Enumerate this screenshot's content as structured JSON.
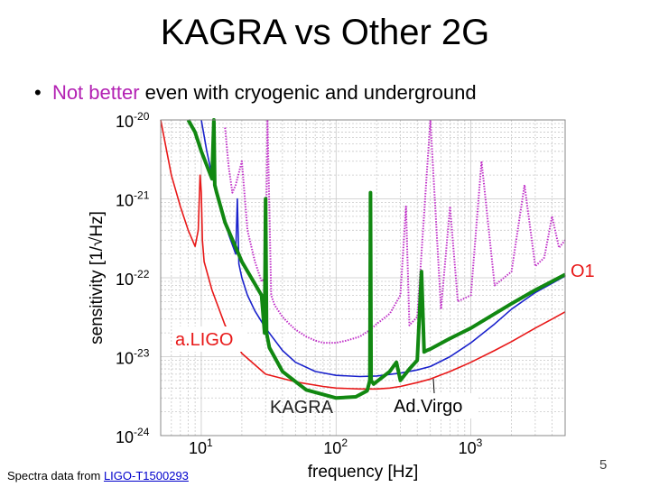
{
  "slide": {
    "title": "KAGRA vs Other 2G",
    "bullet": "•",
    "bullet_highlight": "Not better",
    "bullet_rest": " even with cryogenic and underground",
    "footnote_prefix": "Spectra data from ",
    "footnote_link": "LIGO-T1500293",
    "page_number": "5"
  },
  "colors": {
    "aLIGO": "#e81818",
    "KAGRA": "#118811",
    "AdVirgo": "#1a22cc",
    "O1": "#c030c8",
    "highlight": "#b321b3",
    "grid": "#c8c8c8"
  },
  "chart_data": {
    "type": "line",
    "title": "",
    "xlabel": "frequency [Hz]",
    "ylabel": "sensitivity [1/√Hz]",
    "xscale": "log",
    "yscale": "log",
    "xlim": [
      5,
      5000
    ],
    "ylim": [
      1e-24,
      1e-20
    ],
    "x_ticks": [
      {
        "value": 10,
        "base": "10",
        "exp": "1"
      },
      {
        "value": 100,
        "base": "10",
        "exp": "2"
      },
      {
        "value": 1000,
        "base": "10",
        "exp": "3"
      }
    ],
    "y_ticks": [
      {
        "value": 1e-20,
        "base": "10",
        "exp": "-20"
      },
      {
        "value": 1e-21,
        "base": "10",
        "exp": "-21"
      },
      {
        "value": 1e-22,
        "base": "10",
        "exp": "-22"
      },
      {
        "value": 1e-23,
        "base": "10",
        "exp": "-23"
      },
      {
        "value": 1e-24,
        "base": "10",
        "exp": "-24"
      }
    ],
    "series": [
      {
        "name": "a.LIGO",
        "label": "a.LIGO",
        "color": "#e81818",
        "style": "solid",
        "x": [
          5,
          6,
          7,
          8,
          9,
          9.5,
          9.8,
          10,
          10.2,
          10.5,
          12,
          15,
          20,
          30,
          50,
          80,
          100,
          150,
          200,
          250,
          300,
          400,
          500,
          700,
          1000,
          1500,
          2000,
          3000,
          4000,
          5000
        ],
        "y": [
          1.1e-20,
          2e-21,
          8e-22,
          4e-22,
          2.5e-22,
          4e-22,
          2e-21,
          1.2e-21,
          3e-22,
          1.6e-22,
          7e-23,
          2.5e-23,
          1.1e-23,
          6e-24,
          4.8e-24,
          4.2e-24,
          4e-24,
          3.9e-24,
          3.9e-24,
          4e-24,
          4.2e-24,
          4.7e-24,
          5.2e-24,
          6.5e-24,
          8.5e-24,
          1.2e-23,
          1.55e-23,
          2.3e-23,
          3e-23,
          3.7e-23
        ]
      },
      {
        "name": "Ad.Virgo",
        "label": "Ad.Virgo",
        "color": "#1a22cc",
        "style": "solid",
        "x": [
          10,
          11,
          12,
          14,
          16,
          18,
          18.5,
          19,
          20,
          22,
          25,
          30,
          40,
          50,
          70,
          100,
          150,
          200,
          300,
          400,
          500,
          700,
          1000,
          1500,
          2000,
          3000,
          4000,
          5000
        ],
        "y": [
          1e-20,
          4e-21,
          2e-21,
          8e-22,
          3.5e-22,
          2e-22,
          1e-21,
          1.5e-22,
          1e-22,
          6e-23,
          3.8e-23,
          2.3e-23,
          1.2e-23,
          8.5e-24,
          6.5e-24,
          5.8e-24,
          5.6e-24,
          5.7e-24,
          6.2e-24,
          6.8e-24,
          7.5e-24,
          1e-23,
          1.5e-23,
          2.6e-23,
          4e-23,
          6.5e-23,
          8.5e-23,
          1.05e-22
        ]
      },
      {
        "name": "KAGRA",
        "label": "KAGRA",
        "color": "#118811",
        "style": "solid-thick",
        "x": [
          8,
          9,
          10,
          12,
          12.4,
          12.6,
          13,
          15,
          20,
          28,
          29.5,
          30,
          30.5,
          32,
          40,
          60,
          100,
          140,
          170,
          178,
          180,
          182,
          190,
          250,
          280,
          300,
          350,
          400,
          430,
          450,
          470,
          500,
          700,
          1000,
          1500,
          2000,
          3000,
          4000,
          5000
        ],
        "y": [
          1e-20,
          7e-21,
          4e-21,
          1.8e-21,
          1e-20,
          1.5e-21,
          1.2e-21,
          5e-22,
          1.6e-22,
          6e-23,
          2e-23,
          1e-21,
          2e-23,
          1.3e-23,
          6.5e-24,
          3.8e-24,
          3e-24,
          3.1e-24,
          3.7e-24,
          5e-24,
          1.2e-21,
          5e-24,
          4.5e-24,
          6.5e-24,
          8.5e-24,
          5e-24,
          7e-24,
          9e-24,
          1.2e-22,
          1.15e-23,
          1.2e-23,
          1.25e-23,
          1.7e-23,
          2.3e-23,
          3.5e-23,
          4.7e-23,
          7e-23,
          9e-23,
          1.1e-22
        ]
      },
      {
        "name": "O1",
        "label": "O1",
        "color": "#c030c8",
        "style": "dotted",
        "x": [
          15,
          16,
          17,
          18,
          20,
          22,
          25,
          28,
          30,
          31,
          33,
          35,
          40,
          45,
          50,
          60,
          70,
          80,
          100,
          120,
          150,
          180,
          200,
          250,
          300,
          330,
          350,
          400,
          500,
          600,
          700,
          800,
          1000,
          1200,
          1500,
          2000,
          2500,
          3000,
          3500,
          4000,
          4500,
          5000
        ],
        "y": [
          8e-21,
          2.5e-21,
          1.2e-21,
          1.5e-21,
          3e-21,
          4e-22,
          1.6e-22,
          9e-23,
          1e-22,
          1e-20,
          6e-23,
          4.5e-23,
          3.2e-23,
          2.6e-23,
          2.2e-23,
          1.8e-23,
          1.6e-23,
          1.5e-23,
          1.5e-23,
          1.6e-23,
          1.8e-23,
          2.2e-23,
          2.6e-23,
          3.5e-23,
          6e-23,
          8e-22,
          2.5e-23,
          3.2e-23,
          1e-20,
          4e-23,
          8e-22,
          5e-23,
          6e-23,
          3e-21,
          8e-23,
          1.2e-22,
          1.5e-21,
          1.4e-22,
          1.8e-22,
          6e-22,
          2.4e-22,
          3e-22
        ]
      }
    ],
    "annotations": [
      {
        "id": "O1",
        "text": "O1",
        "color": "#e81818"
      },
      {
        "id": "aLIGO",
        "text": "a.LIGO",
        "color": "#e81818"
      },
      {
        "id": "KAGRA",
        "text": "KAGRA",
        "color": "#222222"
      },
      {
        "id": "AdVirgo",
        "text": "Ad.Virgo",
        "color": "#000000"
      }
    ],
    "grid": true
  }
}
